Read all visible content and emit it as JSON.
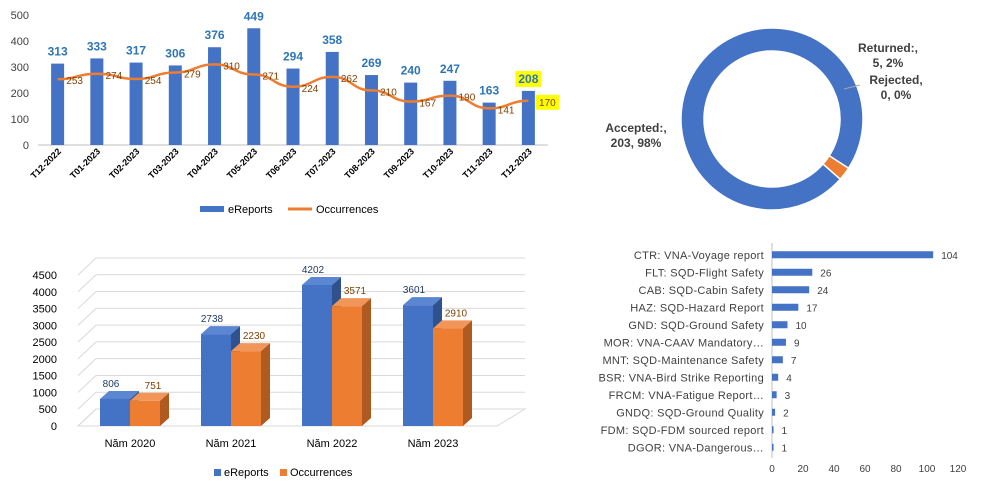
{
  "colors": {
    "ereports": "#4472C4",
    "ereports_dark": "#2F528F",
    "occurrences": "#ED7D31",
    "occurrences_dark": "#AE5A21",
    "value_blue": "#2E75B6",
    "value_brown": "#7F3F00",
    "highlight": "#FFFF00",
    "axis_text": "#404040",
    "grid": "#D9D9D9"
  },
  "chart_data": [
    {
      "type": "bar",
      "subtype": "bar-line-combo",
      "categories": [
        "T12-2022",
        "T01-2023",
        "T02-2023",
        "T03-2023",
        "T04-2023",
        "T05-2023",
        "T06-2023",
        "T07-2023",
        "T08-2023",
        "T09-2023",
        "T10-2023",
        "T11-2023",
        "T12-2023"
      ],
      "series": [
        {
          "name": "eReports",
          "kind": "bar",
          "values": [
            313,
            333,
            317,
            306,
            376,
            449,
            294,
            358,
            269,
            240,
            247,
            163,
            208
          ]
        },
        {
          "name": "Occurrences",
          "kind": "line",
          "values": [
            253,
            274,
            254,
            279,
            310,
            271,
            224,
            262,
            210,
            167,
            190,
            141,
            170
          ]
        }
      ],
      "ylim": [
        0,
        500
      ],
      "yticks": [
        "0",
        "100",
        "200",
        "300",
        "400",
        "500"
      ],
      "highlighted_category": "T12-2023",
      "grid": false,
      "legend": "bottom"
    },
    {
      "type": "pie",
      "subtype": "donut",
      "slices": [
        {
          "label": "Accepted:,",
          "value": 203,
          "percent": "98%",
          "value_text": "203, 98%"
        },
        {
          "label": "Returned:,",
          "value": 5,
          "percent": "2%",
          "value_text": "5, 2%"
        },
        {
          "label": "Rejected,",
          "value": 0,
          "percent": "0%",
          "value_text": "0, 0%"
        }
      ]
    },
    {
      "type": "bar",
      "subtype": "3d-clustered-column",
      "categories": [
        "Năm 2020",
        "Năm 2021",
        "Năm 2022",
        "Năm 2023"
      ],
      "series": [
        {
          "name": "eReports",
          "values": [
            806,
            2738,
            4202,
            3601
          ]
        },
        {
          "name": "Occurrences",
          "values": [
            751,
            2230,
            3571,
            2910
          ]
        }
      ],
      "ylim": [
        0,
        4500
      ],
      "yticks": [
        "0",
        "500",
        "1000",
        "1500",
        "2000",
        "2500",
        "3000",
        "3500",
        "4000",
        "4500"
      ],
      "grid": true,
      "legend": "bottom"
    },
    {
      "type": "bar",
      "subtype": "horizontal",
      "categories": [
        "CTR: VNA-Voyage report",
        "FLT: SQD-Flight Safety",
        "CAB: SQD-Cabin Safety",
        "HAZ: SQD-Hazard Report",
        "GND: SQD-Ground Safety",
        "MOR: VNA-CAAV Mandatory…",
        "MNT: SQD-Maintenance Safety",
        "BSR: VNA-Bird Strike Reporting",
        "FRCM: VNA-Fatigue Report…",
        "GNDQ: SQD-Ground Quality",
        "FDM: SQD-FDM sourced report",
        "DGOR: VNA-Dangerous…"
      ],
      "values": [
        104,
        26,
        24,
        17,
        10,
        9,
        7,
        4,
        3,
        2,
        1,
        1
      ],
      "xlim": [
        0,
        120
      ],
      "xticks": [
        "0",
        "20",
        "40",
        "60",
        "80",
        "100",
        "120"
      ],
      "grid": false
    }
  ]
}
